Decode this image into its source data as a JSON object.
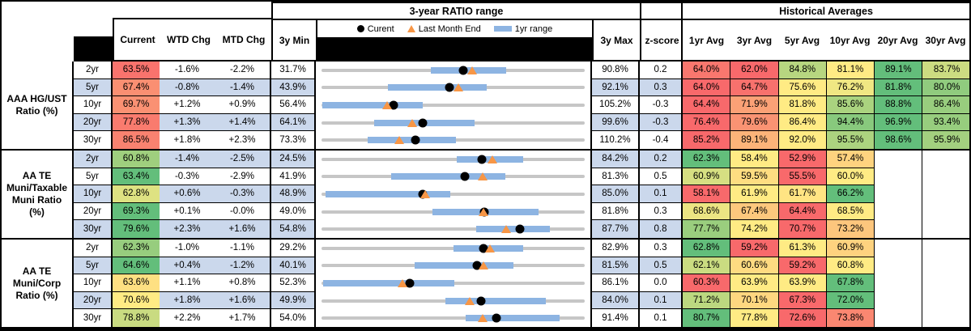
{
  "headers": {
    "chart_section": "3-year RATIO range",
    "hist_section": "Historical Averages",
    "current": "Current",
    "wtd": "WTD Chg",
    "mtd": "MTD Chg",
    "min3y": "3y Min",
    "max3y": "3y Max",
    "z": "z-score",
    "avgs": [
      "1yr Avg",
      "3yr Avg",
      "5yr Avg",
      "10yr Avg",
      "20yr Avg",
      "30yr Avg"
    ]
  },
  "legend": {
    "current": "Curent",
    "last_month": "Last Month End",
    "range": "1yr range"
  },
  "colors": {
    "band": "#CBD8EC",
    "bar": "#8DB4E2",
    "track": "#C6C6C6",
    "tri": "#F79646",
    "scale_min": "#F8696B",
    "scale_mid": "#FFEB84",
    "scale_max": "#63BE7B"
  },
  "chart_data": {
    "type": "table",
    "subtype": "bullet-range-rows with red-yellow-green heatmap over current + historical averages",
    "row_axis_note": "each row's bullet chart spans from 3y Min to 3y Max; dot = current, triangle = last month end, thick bar = 1yr range (values estimated from pixels)",
    "groups": [
      {
        "label": [
          "AAA HG/UST",
          "Ratio (%)"
        ],
        "rows": [
          {
            "tenor": "2yr",
            "current": "63.5%",
            "wtd": "-1.6%",
            "mtd": "-2.2%",
            "min": "31.7%",
            "max": "90.8%",
            "z": "0.2",
            "avgs": [
              "64.0%",
              "62.0%",
              "84.8%",
              "81.1%",
              "89.1%",
              "83.7%"
            ],
            "lme": 65.5,
            "r1": [
              56.3,
              73.2
            ]
          },
          {
            "tenor": "5yr",
            "current": "67.4%",
            "wtd": "-0.8%",
            "mtd": "-1.4%",
            "min": "43.9%",
            "max": "92.1%",
            "z": "0.3",
            "avgs": [
              "64.0%",
              "64.7%",
              "75.6%",
              "76.2%",
              "81.8%",
              "80.0%"
            ],
            "lme": 68.9,
            "r1": [
              56.0,
              74.1
            ]
          },
          {
            "tenor": "10yr",
            "current": "69.7%",
            "wtd": "+1.2%",
            "mtd": "+0.9%",
            "min": "56.4%",
            "max": "105.2%",
            "z": "-0.3",
            "avgs": [
              "64.4%",
              "71.9%",
              "81.8%",
              "85.6%",
              "88.8%",
              "86.4%"
            ],
            "lme": 68.6,
            "r1": [
              56.6,
              75.2
            ]
          },
          {
            "tenor": "20yr",
            "current": "77.8%",
            "wtd": "+1.3%",
            "mtd": "+1.4%",
            "min": "64.1%",
            "max": "99.6%",
            "z": "-0.3",
            "avgs": [
              "76.4%",
              "79.6%",
              "86.4%",
              "94.4%",
              "96.9%",
              "93.4%"
            ],
            "lme": 76.3,
            "r1": [
              71.2,
              84.7
            ]
          },
          {
            "tenor": "30yr",
            "current": "86.5%",
            "wtd": "+1.8%",
            "mtd": "+2.3%",
            "min": "73.3%",
            "max": "110.2%",
            "z": "-0.4",
            "avgs": [
              "85.2%",
              "89.1%",
              "92.0%",
              "95.5%",
              "98.6%",
              "95.9%"
            ],
            "lme": 84.2,
            "r1": [
              79.8,
              92.2
            ]
          }
        ]
      },
      {
        "label": [
          "AA TE",
          "Muni/Taxable",
          "Muni Ratio",
          "(%)"
        ],
        "rows": [
          {
            "tenor": "2yr",
            "current": "60.8%",
            "wtd": "-1.4%",
            "mtd": "-2.5%",
            "min": "24.5%",
            "max": "84.2%",
            "z": "0.2",
            "avgs": [
              "62.3%",
              "58.4%",
              "52.9%",
              "57.4%",
              "",
              ""
            ],
            "lme": 63.2,
            "r1": [
              55.1,
              70.3
            ]
          },
          {
            "tenor": "5yr",
            "current": "63.4%",
            "wtd": "-0.3%",
            "mtd": "-2.9%",
            "min": "41.9%",
            "max": "81.3%",
            "z": "0.5",
            "avgs": [
              "60.9%",
              "59.5%",
              "55.5%",
              "60.0%",
              "",
              ""
            ],
            "lme": 66.0,
            "r1": [
              52.3,
              69.4
            ]
          },
          {
            "tenor": "10yr",
            "current": "62.8%",
            "wtd": "+0.6%",
            "mtd": "-0.3%",
            "min": "48.9%",
            "max": "85.0%",
            "z": "0.1",
            "avgs": [
              "58.1%",
              "61.9%",
              "61.7%",
              "66.2%",
              "",
              ""
            ],
            "lme": 63.1,
            "r1": [
              49.4,
              66.6
            ]
          },
          {
            "tenor": "20yr",
            "current": "69.3%",
            "wtd": "+0.1%",
            "mtd": "-0.0%",
            "min": "49.0%",
            "max": "81.8%",
            "z": "0.3",
            "avgs": [
              "68.6%",
              "67.4%",
              "64.4%",
              "68.5%",
              "",
              ""
            ],
            "lme": 69.2,
            "r1": [
              62.8,
              76.0
            ]
          },
          {
            "tenor": "30yr",
            "current": "79.6%",
            "wtd": "+2.3%",
            "mtd": "+1.6%",
            "min": "54.8%",
            "max": "87.7%",
            "z": "0.8",
            "avgs": [
              "77.7%",
              "74.2%",
              "70.7%",
              "73.2%",
              "",
              ""
            ],
            "lme": 77.9,
            "r1": [
              74.1,
              83.3
            ]
          }
        ]
      },
      {
        "label": [
          "AA TE",
          "Muni/Corp",
          "Ratio (%)"
        ],
        "rows": [
          {
            "tenor": "2yr",
            "current": "62.3%",
            "wtd": "-1.0%",
            "mtd": "-1.1%",
            "min": "29.2%",
            "max": "82.9%",
            "z": "0.3",
            "avgs": [
              "62.8%",
              "59.2%",
              "61.3%",
              "60.9%",
              "",
              ""
            ],
            "lme": 63.5,
            "r1": [
              56.2,
              70.4
            ]
          },
          {
            "tenor": "5yr",
            "current": "64.6%",
            "wtd": "+0.4%",
            "mtd": "-1.2%",
            "min": "40.1%",
            "max": "81.5%",
            "z": "0.5",
            "avgs": [
              "62.1%",
              "60.6%",
              "59.2%",
              "60.8%",
              "",
              ""
            ],
            "lme": 65.6,
            "r1": [
              54.7,
              70.3
            ]
          },
          {
            "tenor": "10yr",
            "current": "63.6%",
            "wtd": "+1.1%",
            "mtd": "+0.8%",
            "min": "52.3%",
            "max": "86.1%",
            "z": "0.0",
            "avgs": [
              "60.3%",
              "63.9%",
              "63.9%",
              "67.8%",
              "",
              ""
            ],
            "lme": 62.7,
            "r1": [
              52.5,
              69.4
            ]
          },
          {
            "tenor": "20yr",
            "current": "70.6%",
            "wtd": "+1.8%",
            "mtd": "+1.6%",
            "min": "49.9%",
            "max": "84.0%",
            "z": "0.1",
            "avgs": [
              "71.2%",
              "70.1%",
              "67.3%",
              "72.0%",
              "",
              ""
            ],
            "lme": 69.1,
            "r1": [
              66.0,
              79.0
            ]
          },
          {
            "tenor": "30yr",
            "current": "78.8%",
            "wtd": "+2.2%",
            "mtd": "+1.7%",
            "min": "54.0%",
            "max": "91.4%",
            "z": "0.1",
            "avgs": [
              "80.7%",
              "77.8%",
              "72.6%",
              "73.8%",
              "",
              ""
            ],
            "lme": 76.9,
            "r1": [
              74.5,
              87.8
            ]
          }
        ]
      }
    ]
  }
}
